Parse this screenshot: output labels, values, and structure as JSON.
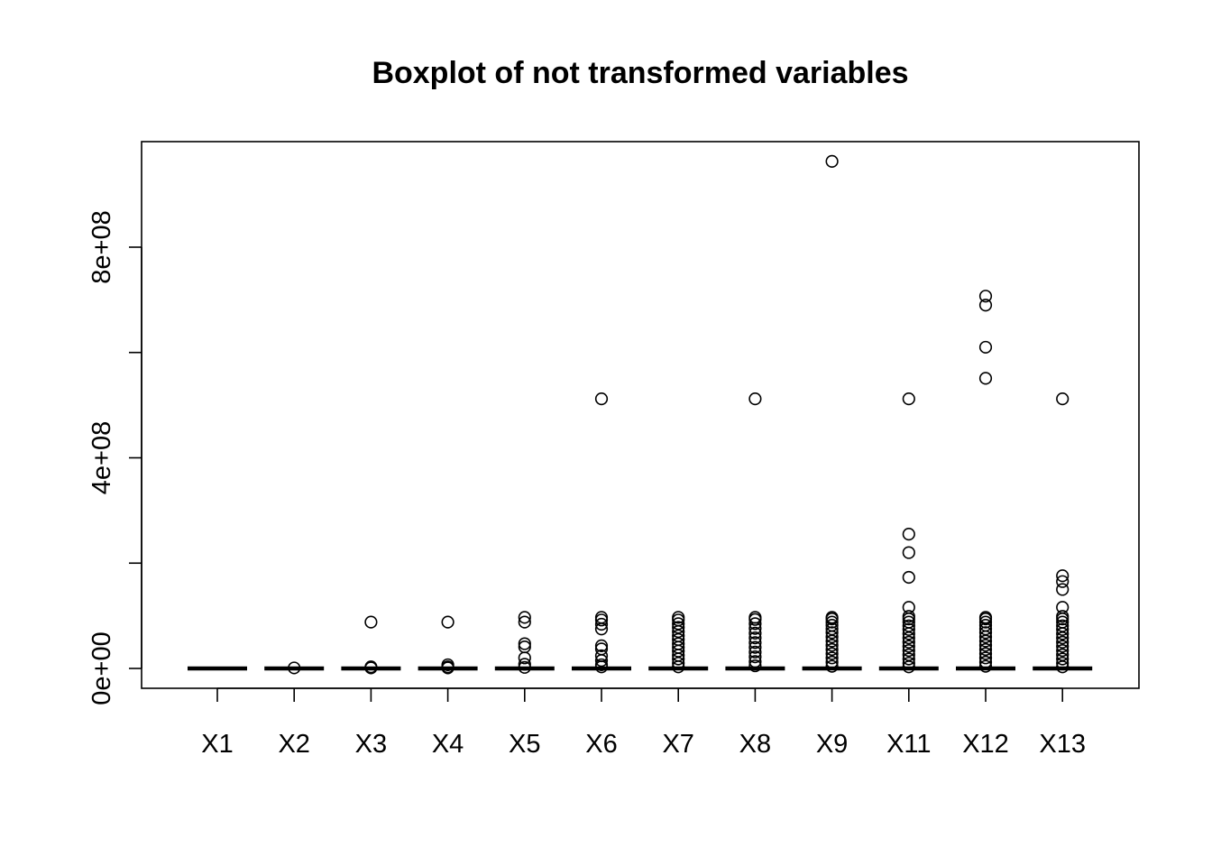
{
  "chart_data": {
    "type": "boxplot",
    "title": "Boxplot of not transformed variables",
    "xlabel": "",
    "ylabel": "",
    "categories": [
      "X1",
      "X2",
      "X3",
      "X4",
      "X5",
      "X6",
      "X7",
      "X8",
      "X9",
      "X11",
      "X12",
      "X13"
    ],
    "ylim": [
      -40000000,
      1000000000
    ],
    "yticks": [
      0,
      200000000,
      400000000,
      600000000,
      800000000
    ],
    "ytick_labels": [
      "0e+00",
      "",
      "4e+08",
      "",
      "8e+08"
    ],
    "grid": false,
    "legend": "none",
    "boxes": [
      {
        "name": "X1",
        "median": 0,
        "outliers": []
      },
      {
        "name": "X2",
        "median": 0,
        "outliers": [
          1000000
        ]
      },
      {
        "name": "X3",
        "median": 0,
        "outliers": [
          88000000,
          1000000,
          3000000
        ]
      },
      {
        "name": "X4",
        "median": 0,
        "outliers": [
          88000000,
          7000000,
          3000000,
          1000000
        ]
      },
      {
        "name": "X5",
        "median": 0,
        "outliers": [
          97000000,
          88000000,
          47000000,
          41000000,
          20000000,
          8000000,
          2000000
        ]
      },
      {
        "name": "X6",
        "median": 0,
        "outliers": [
          512000000,
          97000000,
          92000000,
          84000000,
          75000000,
          43000000,
          37000000,
          24000000,
          15000000,
          7000000,
          3000000
        ]
      },
      {
        "name": "X7",
        "median": 0,
        "outliers": [
          97000000,
          92000000,
          85000000,
          78000000,
          70000000,
          62000000,
          55000000,
          47000000,
          40000000,
          33000000,
          25000000,
          18000000,
          10000000,
          3000000
        ]
      },
      {
        "name": "X8",
        "median": 0,
        "outliers": [
          512000000,
          97000000,
          93000000,
          85000000,
          76000000,
          67000000,
          58000000,
          49000000,
          40000000,
          31000000,
          22000000,
          13000000,
          5000000
        ]
      },
      {
        "name": "X9",
        "median": 0,
        "outliers": [
          963000000,
          97000000,
          94000000,
          88000000,
          82000000,
          75000000,
          68000000,
          60000000,
          52000000,
          44000000,
          36000000,
          28000000,
          20000000,
          12000000,
          4000000
        ]
      },
      {
        "name": "X11",
        "median": 0,
        "outliers": [
          512000000,
          255000000,
          220000000,
          173000000,
          116000000,
          99000000,
          94000000,
          88000000,
          81000000,
          74000000,
          66000000,
          58000000,
          50000000,
          42000000,
          34000000,
          26000000,
          18000000,
          10000000,
          3000000
        ]
      },
      {
        "name": "X12",
        "median": 0,
        "outliers": [
          707000000,
          690000000,
          610000000,
          551000000,
          97000000,
          94000000,
          88000000,
          82000000,
          75000000,
          68000000,
          60000000,
          52000000,
          44000000,
          36000000,
          28000000,
          20000000,
          12000000,
          4000000
        ]
      },
      {
        "name": "X13",
        "median": 0,
        "outliers": [
          512000000,
          176000000,
          165000000,
          150000000,
          116000000,
          99000000,
          94000000,
          88000000,
          81000000,
          74000000,
          66000000,
          58000000,
          50000000,
          42000000,
          34000000,
          26000000,
          18000000,
          10000000,
          3000000
        ]
      }
    ]
  }
}
